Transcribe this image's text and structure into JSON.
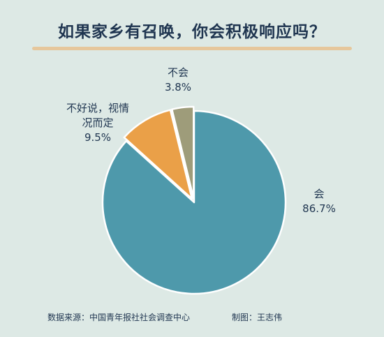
{
  "title": "如果家乡有召唤，你会积极响应吗？",
  "chart_data": {
    "type": "pie",
    "title": "如果家乡有召唤，你会积极响应吗？",
    "slices": [
      {
        "label": "会",
        "value": 86.7,
        "value_label": "86.7%",
        "color": "#4e99ab"
      },
      {
        "label": "不好说，视情况而定",
        "label_lines": [
          "不好说，视情",
          "况而定"
        ],
        "value": 9.5,
        "value_label": "9.5%",
        "color": "#eaa048"
      },
      {
        "label": "不会",
        "value": 3.8,
        "value_label": "3.8%",
        "color": "#9e9c7a"
      }
    ]
  },
  "footer": {
    "source": "数据来源：中国青年报社社会调查中心",
    "credit": "制图：王志伟"
  }
}
